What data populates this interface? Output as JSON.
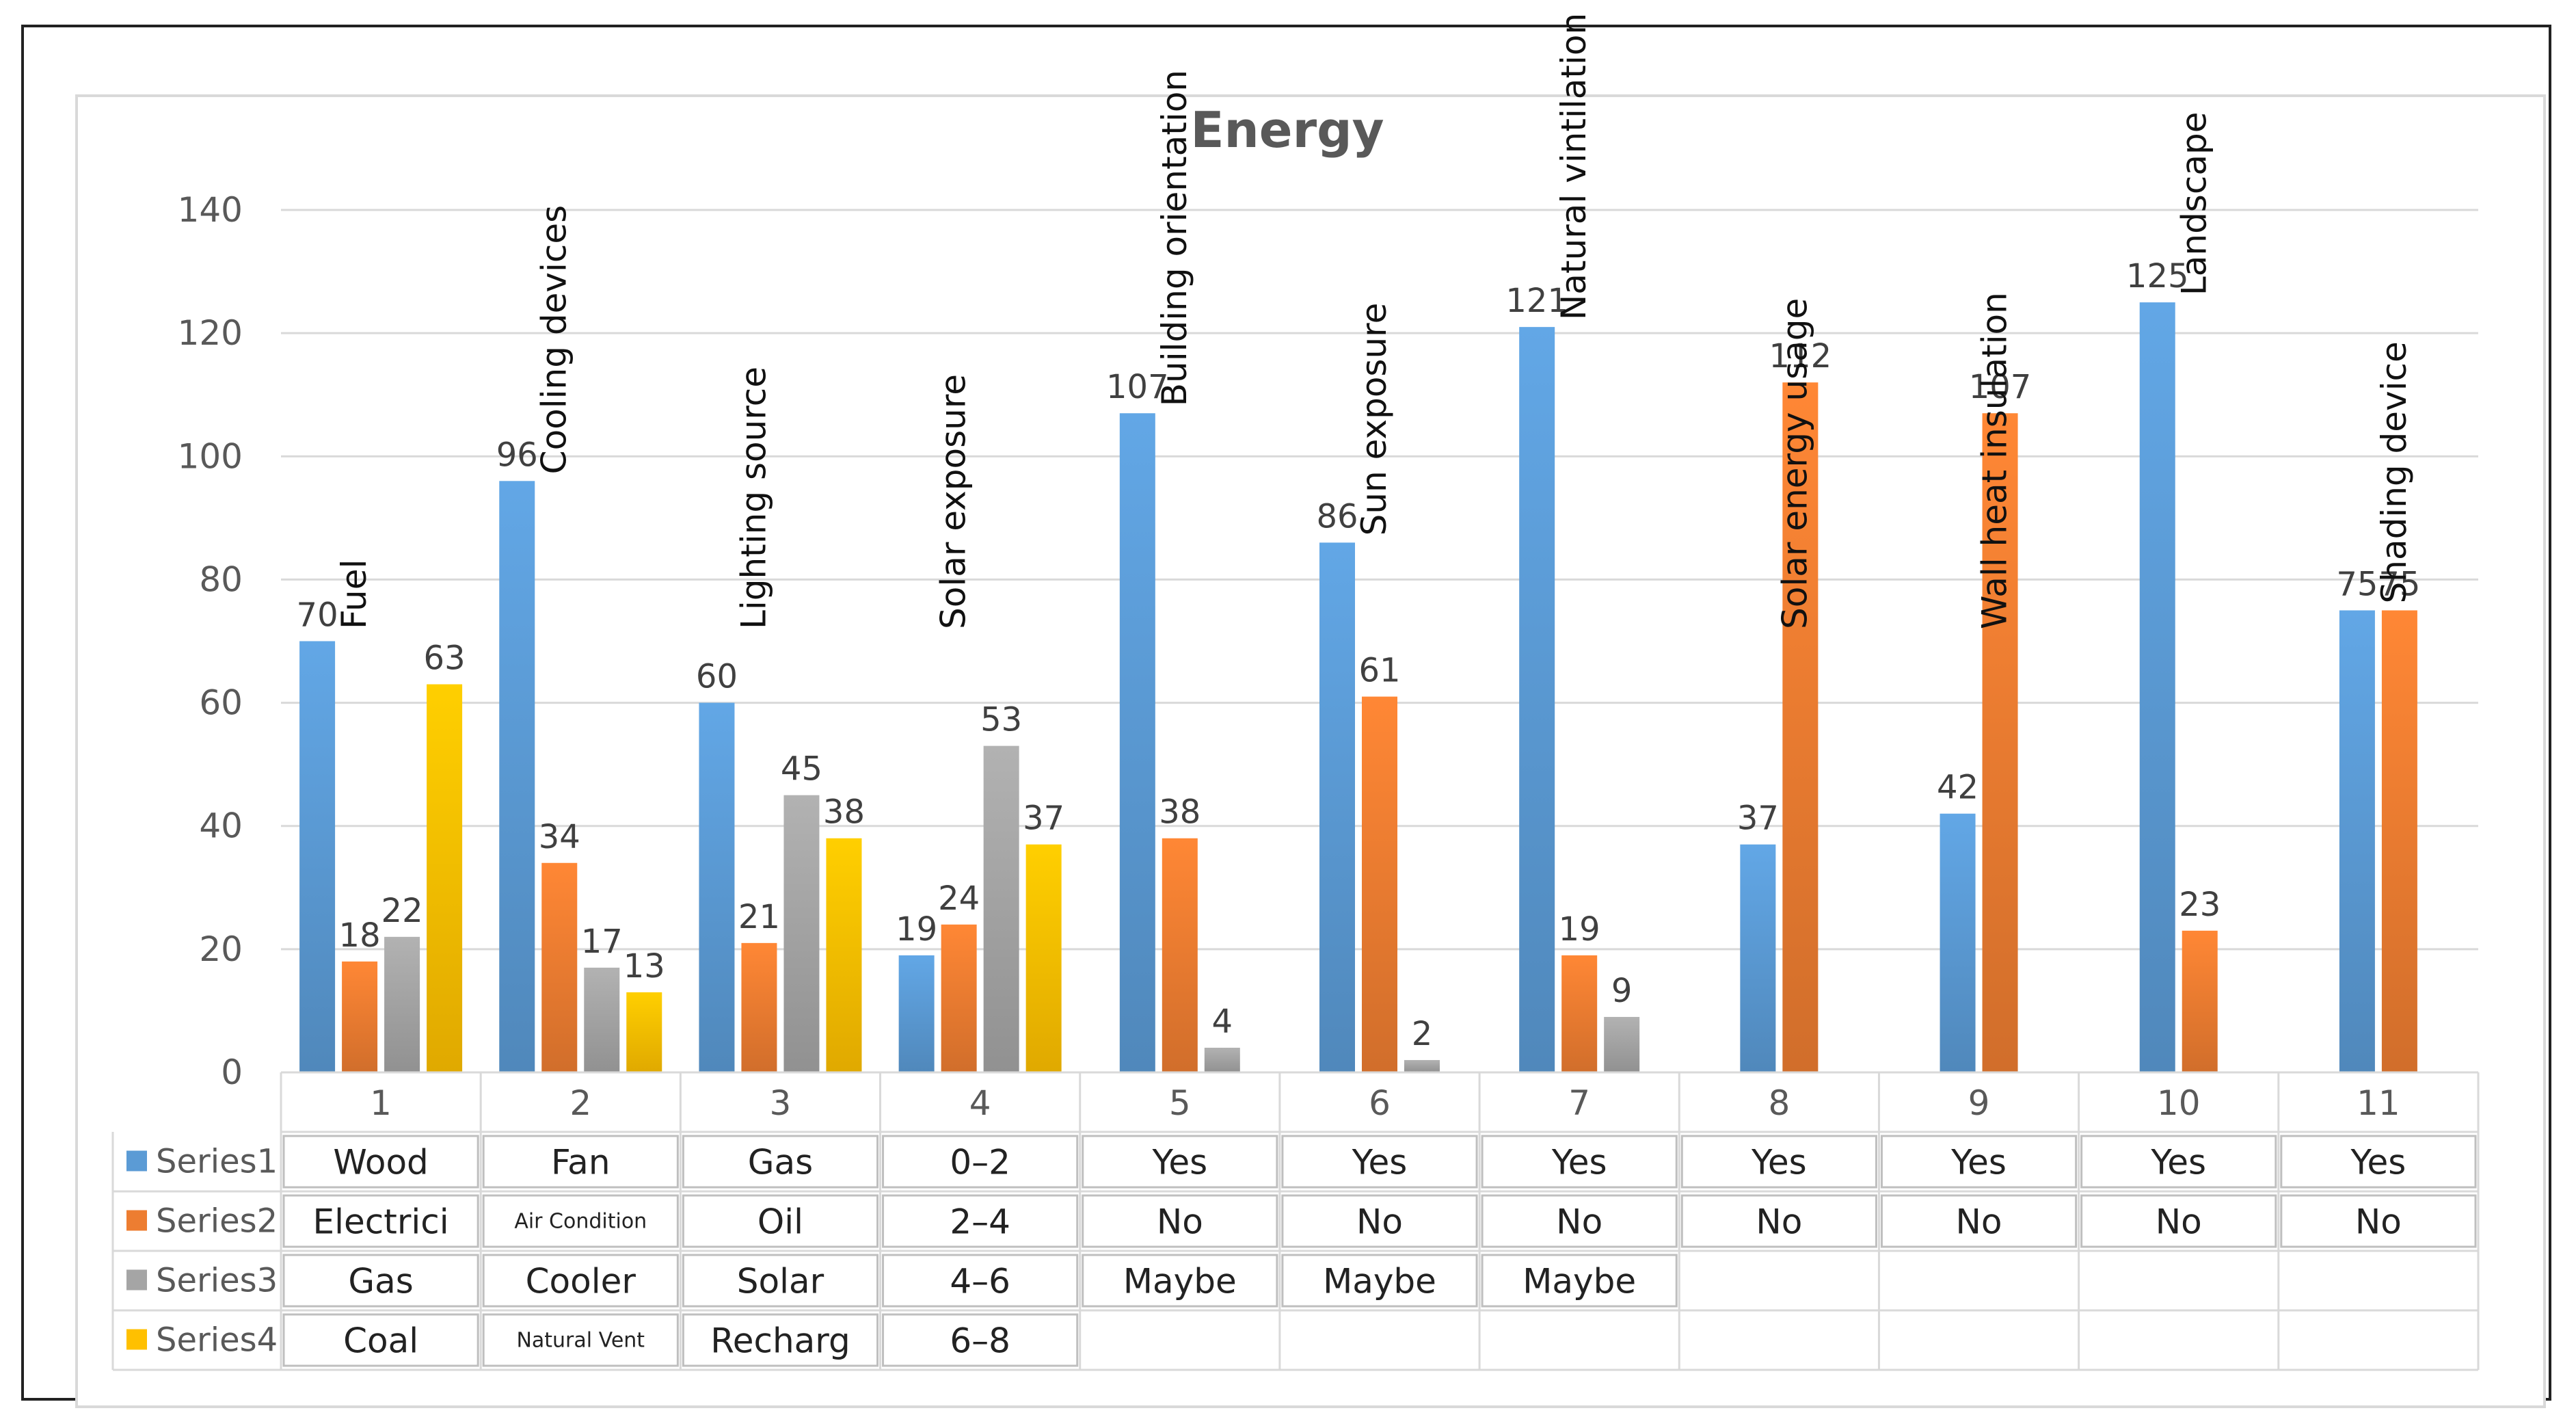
{
  "chart_data": {
    "type": "bar",
    "title": "Energy",
    "xlabel": "",
    "ylabel": "",
    "ylim": [
      0,
      140
    ],
    "yticks": [
      0,
      20,
      40,
      60,
      80,
      100,
      120,
      140
    ],
    "categories": [
      "1",
      "2",
      "3",
      "4",
      "5",
      "6",
      "7",
      "8",
      "9",
      "10",
      "11"
    ],
    "category_names": [
      "Fuel",
      "Cooling devices",
      "Lighting source",
      "Solar exposure",
      "Building orientation",
      "Sun exposure",
      "Natural vintilation",
      "Solar energy usage",
      "Wall heat insulation",
      "Landscape",
      "Shading device"
    ],
    "series": [
      {
        "name": "Series1",
        "color": "#5b9bd5",
        "values": [
          70,
          96,
          60,
          19,
          107,
          86,
          121,
          37,
          42,
          125,
          75
        ]
      },
      {
        "name": "Series2",
        "color": "#ed7d31",
        "values": [
          18,
          34,
          21,
          24,
          38,
          61,
          19,
          112,
          107,
          23,
          75
        ]
      },
      {
        "name": "Series3",
        "color": "#a5a5a5",
        "values": [
          22,
          17,
          45,
          53,
          4,
          2,
          9,
          null,
          null,
          null,
          null
        ]
      },
      {
        "name": "Series4",
        "color": "#ffc000",
        "values": [
          63,
          13,
          38,
          37,
          null,
          null,
          null,
          null,
          null,
          null,
          null
        ]
      }
    ],
    "legend": "bottom-left table",
    "grid": true,
    "table": [
      [
        "Wood",
        "Fan",
        "Gas",
        "0–2",
        "Yes",
        "Yes",
        "Yes",
        "Yes",
        "Yes",
        "Yes",
        "Yes"
      ],
      [
        "Electrici",
        "Air Condition",
        "Oil",
        "2–4",
        "No",
        "No",
        "No",
        "No",
        "No",
        "No",
        "No"
      ],
      [
        "Gas",
        "Cooler",
        "Solar",
        "4–6",
        "Maybe",
        "Maybe",
        "Maybe",
        "",
        "",
        "",
        ""
      ],
      [
        "Coal",
        "Natural Vent",
        "Recharg",
        "6–8",
        "",
        "",
        "",
        "",
        "",
        "",
        ""
      ]
    ]
  }
}
